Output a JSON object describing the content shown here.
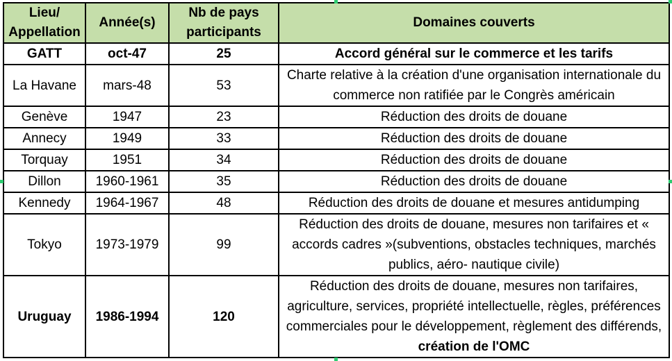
{
  "table": {
    "headers": [
      "Lieu/ Appellation",
      "Année(s)",
      "Nb de pays participants",
      "Domaines couverts"
    ],
    "header_bg": "#c5deaa",
    "rows": [
      {
        "lieu": "GATT",
        "annee": "oct-47",
        "nb": "25",
        "domaines": "Accord général sur le commerce et les tarifs",
        "bold": true
      },
      {
        "lieu": "La Havane",
        "annee": "mars-48",
        "nb": "53",
        "domaines": "Charte relative à la création d'une organisation internationale du commerce non ratifiée par le Congrès américain"
      },
      {
        "lieu": "Genève",
        "annee": "1947",
        "nb": "23",
        "domaines": "Réduction des droits de douane"
      },
      {
        "lieu": "Annecy",
        "annee": "1949",
        "nb": "33",
        "domaines": "Réduction des droits de douane"
      },
      {
        "lieu": "Torquay",
        "annee": "1951",
        "nb": "34",
        "domaines": "Réduction des droits de douane"
      },
      {
        "lieu": "Dillon",
        "annee": "1960-1961",
        "nb": "35",
        "domaines": "Réduction des droits de douane"
      },
      {
        "lieu": "Kennedy",
        "annee": "1964-1967",
        "nb": "48",
        "domaines": "Réduction des droits de douane et mesures antidumping"
      },
      {
        "lieu": "Tokyo",
        "annee": "1973-1979",
        "nb": "99",
        "domaines": "Réduction des droits de douane, mesures non tarifaires et « accords cadres »(subventions, obstacles techniques, marchés publics, aéro- nautique civile)"
      },
      {
        "lieu": "Uruguay",
        "annee": "1986-1994",
        "nb": "120",
        "domaines": "Réduction des droits de douane, mesures non tarifaires, agriculture, services, propriété intellectuelle, règles, préférences commerciales pour le développement, règlement des différends,",
        "domaines_bold": "création de l'OMC",
        "bold": true
      }
    ]
  }
}
